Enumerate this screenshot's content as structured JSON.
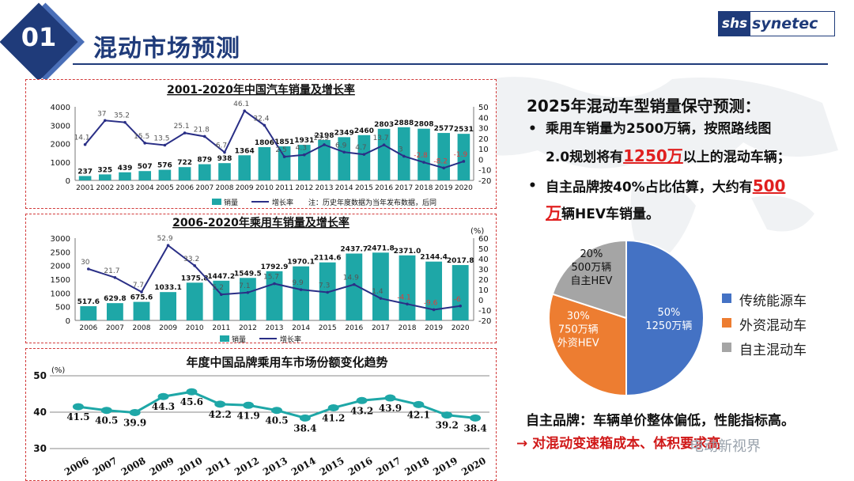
{
  "header": {
    "section_number": "01",
    "title": "混动市场预测",
    "logo_left": "shs",
    "logo_right": "synetec"
  },
  "right_panel": {
    "heading": "2025年混动车型销量保守预测：",
    "bullet1_line1": "乘用车销量为2500万辆，按照路线图",
    "bullet1_line2_a": "2.0规划将有",
    "bullet1_line2_highlight": "1250万",
    "bullet1_line2_b": "以上的混动车辆；",
    "bullet2_line1_a": "自主品牌按40%占比估算，大约有",
    "bullet2_line1_highlight": "500",
    "bullet2_line2_highlight": "万",
    "bullet2_line2_b": "辆HEV车销量。",
    "note1": "自主品牌：车辆单价整体偏低，性能指标高。",
    "note2": "→ 对混动变速箱成本、体积要求高",
    "watermark": "电动新视界"
  },
  "chart_data": [
    {
      "type": "bar",
      "title": "2001-2020年中国汽车销量及增长率",
      "categories": [
        "2001",
        "2002",
        "2003",
        "2004",
        "2005",
        "2006",
        "2007",
        "2008",
        "2009",
        "2010",
        "2011",
        "2012",
        "2013",
        "2014",
        "2015",
        "2016",
        "2017",
        "2018",
        "2019",
        "2020"
      ],
      "series": [
        {
          "name": "销量",
          "kind": "bar",
          "values": [
            237,
            325,
            439,
            507,
            576,
            722,
            879,
            938,
            1364,
            1806,
            1851,
            1931,
            2198,
            2349,
            2460,
            2803,
            2888,
            2808,
            2577,
            2531
          ],
          "labels": [
            "237",
            "325",
            "439",
            "507",
            "576",
            "722",
            "879",
            "938",
            "1364",
            "1806",
            "1851",
            "1931",
            "2198",
            "2349",
            "2460",
            "2803",
            "2888",
            "2808",
            "2577",
            "2531"
          ]
        },
        {
          "name": "增长率",
          "kind": "line",
          "values": [
            14.1,
            37,
            35.2,
            15.5,
            13.5,
            25.1,
            21.8,
            6.7,
            46.1,
            32.4,
            2.5,
            4.3,
            13.9,
            6.9,
            4.7,
            13.7,
            3,
            -2.8,
            -8.2,
            -1.9
          ],
          "labels": [
            "14.1",
            "37",
            "35.2",
            "15.5",
            "13.5",
            "25.1",
            "21.8",
            "6.7",
            "46.1",
            "32.4",
            "2.5",
            "4.3",
            "13.9",
            "6.9",
            "4.7",
            "13.7",
            "3",
            "-2.8",
            "-8.2",
            "-1.9"
          ]
        }
      ],
      "ylim": [
        0,
        4000
      ],
      "yticks": [
        "0",
        "1000",
        "2000",
        "3000",
        "4000"
      ],
      "y2lim": [
        -20,
        50
      ],
      "y2ticks": [
        "-20",
        "-10",
        "0",
        "10",
        "20",
        "30",
        "40",
        "50"
      ],
      "legend": [
        "销量",
        "增长率"
      ],
      "footnote": "注：历史年度数据为当年发布数据，后同"
    },
    {
      "type": "bar",
      "title": "2006-2020年乘用车销量及增长率",
      "categories": [
        "2006",
        "2007",
        "2008",
        "2009",
        "2010",
        "2011",
        "2012",
        "2013",
        "2014",
        "2015",
        "2016",
        "2017",
        "2018",
        "2019",
        "2020"
      ],
      "series": [
        {
          "name": "销量",
          "kind": "bar",
          "values": [
            517.6,
            629.8,
            675.6,
            1033.1,
            1375.8,
            1447.2,
            1549.5,
            1792.9,
            1970.1,
            2114.6,
            2437.7,
            2471.8,
            2371.0,
            2144.4,
            2017.8
          ],
          "labels": [
            "517.6",
            "629.8",
            "675.6",
            "1033.1",
            "1375.8",
            "1447.2",
            "1549.5",
            "1792.9",
            "1970.1",
            "2114.6",
            "2437.7",
            "2471.8",
            "2371.0",
            "2144.4",
            "2017.8"
          ]
        },
        {
          "name": "增长率",
          "kind": "line",
          "values": [
            30,
            21.7,
            7.7,
            52.9,
            33.2,
            5.2,
            7.1,
            15.7,
            9.9,
            7.3,
            14.9,
            1.4,
            -4.1,
            -9.6,
            -6
          ],
          "labels": [
            "30",
            "21.7",
            "7.7",
            "52.9",
            "33.2",
            "5.2",
            "7.1",
            "15.7",
            "9.9",
            "7.3",
            "14.9",
            "1.4",
            "-4.1",
            "-9.6",
            "-6"
          ]
        }
      ],
      "ylim": [
        0,
        3000
      ],
      "yticks": [
        "0",
        "500",
        "1000",
        "1500",
        "2000",
        "2500",
        "3000"
      ],
      "y2lim": [
        -20,
        60
      ],
      "y2ticks": [
        "-20",
        "-10",
        "0",
        "10",
        "20",
        "30",
        "40",
        "50",
        "60"
      ],
      "y2unit": "(%)",
      "legend": [
        "销量",
        "增长率"
      ]
    },
    {
      "type": "line",
      "title": "年度中国品牌乘用车市场份额变化趋势",
      "categories": [
        "2006",
        "2007",
        "2008",
        "2009",
        "2010",
        "2011",
        "2012",
        "2013",
        "2014",
        "2015",
        "2016",
        "2017",
        "2018",
        "2019",
        "2020"
      ],
      "series": [
        {
          "name": "份额",
          "values": [
            41.5,
            40.5,
            39.9,
            44.3,
            45.6,
            42.2,
            41.9,
            40.5,
            38.4,
            41.2,
            43.2,
            43.9,
            42.1,
            39.2,
            38.4
          ],
          "labels": [
            "41.5",
            "40.5",
            "39.9",
            "44.3",
            "45.6",
            "42.2",
            "41.9",
            "40.5",
            "38.4",
            "41.2",
            "43.2",
            "43.9",
            "42.1",
            "39.2",
            "38.4"
          ]
        }
      ],
      "ylim": [
        30,
        50
      ],
      "yticks": [
        "30",
        "40",
        "50"
      ],
      "yunit": "(%)"
    },
    {
      "type": "pie",
      "slices": [
        {
          "name": "传统能源车",
          "value": 50,
          "label_lines": [
            "50%",
            "1250万辆"
          ],
          "color": "#4472c4"
        },
        {
          "name": "外资混动车",
          "value": 30,
          "label_lines": [
            "30%",
            "750万辆",
            "外资HEV"
          ],
          "color": "#ed7d31"
        },
        {
          "name": "自主混动车",
          "value": 20,
          "label_lines": [
            "20%",
            "500万辆",
            "自主HEV"
          ],
          "color": "#a5a5a5"
        }
      ]
    }
  ],
  "colors": {
    "bar": "#1ea7a7",
    "line": "#2a2f86",
    "line_neg": "#e23b3b",
    "header": "#1f3b7a",
    "red": "#e02020"
  }
}
